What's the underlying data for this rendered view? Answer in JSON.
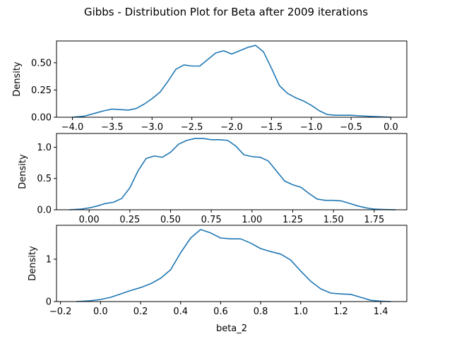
{
  "figure": {
    "title": "Gibbs - Distribution Plot for Beta after 2009 iterations",
    "line_color": "#1f77b4"
  },
  "chart_data": [
    {
      "type": "line",
      "title": "",
      "xlabel": "",
      "ylabel": "Density",
      "xlim": [
        -4.2,
        0.2
      ],
      "ylim": [
        0,
        0.7
      ],
      "xticks": [
        -4.0,
        -3.5,
        -3.0,
        -2.5,
        -2.0,
        -1.5,
        -1.0,
        -0.5,
        0.0
      ],
      "xtick_labels": [
        "−4.0",
        "−3.5",
        "−3.0",
        "−2.5",
        "−2.0",
        "−1.5",
        "−1.0",
        "−0.5",
        "0.0"
      ],
      "yticks": [
        0.0,
        0.25,
        0.5
      ],
      "ytick_labels": [
        "0.00",
        "0.25",
        "0.50"
      ],
      "grid": false,
      "series": [
        {
          "x": [
            -4.0,
            -3.85,
            -3.7,
            -3.6,
            -3.5,
            -3.4,
            -3.3,
            -3.2,
            -3.1,
            -3.0,
            -2.9,
            -2.8,
            -2.7,
            -2.6,
            -2.5,
            -2.4,
            -2.3,
            -2.2,
            -2.1,
            -2.0,
            -1.9,
            -1.8,
            -1.7,
            -1.6,
            -1.5,
            -1.4,
            -1.3,
            -1.2,
            -1.1,
            -1.0,
            -0.9,
            -0.8,
            -0.7,
            -0.6,
            -0.5,
            -0.4,
            -0.2,
            0.0
          ],
          "y": [
            0.0,
            0.01,
            0.04,
            0.06,
            0.075,
            0.07,
            0.065,
            0.08,
            0.12,
            0.17,
            0.23,
            0.33,
            0.44,
            0.48,
            0.47,
            0.47,
            0.53,
            0.59,
            0.61,
            0.58,
            0.61,
            0.64,
            0.66,
            0.6,
            0.45,
            0.29,
            0.22,
            0.18,
            0.15,
            0.11,
            0.06,
            0.025,
            0.018,
            0.018,
            0.018,
            0.013,
            0.006,
            0.0
          ]
        }
      ]
    },
    {
      "type": "line",
      "title": "",
      "xlabel": "",
      "ylabel": "Density",
      "xlim": [
        -0.2,
        1.95
      ],
      "ylim": [
        0,
        1.22
      ],
      "xticks": [
        0.0,
        0.25,
        0.5,
        0.75,
        1.0,
        1.25,
        1.5,
        1.75
      ],
      "xtick_labels": [
        "0.00",
        "0.25",
        "0.50",
        "0.75",
        "1.00",
        "1.25",
        "1.50",
        "1.75"
      ],
      "yticks": [
        0.0,
        0.5,
        1.0
      ],
      "ytick_labels": [
        "0.0",
        "0.5",
        "1.0"
      ],
      "grid": false,
      "series": [
        {
          "x": [
            -0.12,
            -0.05,
            0.0,
            0.05,
            0.1,
            0.15,
            0.2,
            0.25,
            0.3,
            0.35,
            0.4,
            0.45,
            0.5,
            0.55,
            0.6,
            0.65,
            0.7,
            0.75,
            0.8,
            0.85,
            0.9,
            0.95,
            1.0,
            1.05,
            1.1,
            1.15,
            1.2,
            1.25,
            1.3,
            1.35,
            1.4,
            1.45,
            1.5,
            1.55,
            1.6,
            1.65,
            1.7,
            1.75,
            1.8,
            1.88
          ],
          "y": [
            0.0,
            0.01,
            0.03,
            0.06,
            0.1,
            0.12,
            0.18,
            0.35,
            0.62,
            0.82,
            0.86,
            0.84,
            0.92,
            1.05,
            1.11,
            1.14,
            1.14,
            1.12,
            1.12,
            1.11,
            1.02,
            0.88,
            0.85,
            0.84,
            0.78,
            0.62,
            0.46,
            0.4,
            0.36,
            0.26,
            0.17,
            0.15,
            0.15,
            0.14,
            0.1,
            0.06,
            0.03,
            0.01,
            0.005,
            0.0
          ]
        }
      ]
    },
    {
      "type": "line",
      "title": "",
      "xlabel": "beta_2",
      "ylabel": "Density",
      "xlim": [
        -0.22,
        1.53
      ],
      "ylim": [
        0,
        1.8
      ],
      "xticks": [
        -0.2,
        0.0,
        0.2,
        0.4,
        0.6,
        0.8,
        1.0,
        1.2,
        1.4
      ],
      "xtick_labels": [
        "−0.2",
        "0.0",
        "0.2",
        "0.4",
        "0.6",
        "0.8",
        "1.0",
        "1.2",
        "1.4"
      ],
      "yticks": [
        0.0,
        1.0
      ],
      "ytick_labels": [
        "0",
        "1"
      ],
      "grid": false,
      "series": [
        {
          "x": [
            -0.12,
            -0.05,
            0.0,
            0.05,
            0.1,
            0.15,
            0.2,
            0.25,
            0.3,
            0.35,
            0.4,
            0.45,
            0.5,
            0.55,
            0.6,
            0.65,
            0.7,
            0.75,
            0.8,
            0.85,
            0.9,
            0.95,
            1.0,
            1.05,
            1.1,
            1.15,
            1.2,
            1.25,
            1.3,
            1.35,
            1.4,
            1.45
          ],
          "y": [
            0.0,
            0.02,
            0.05,
            0.1,
            0.18,
            0.26,
            0.33,
            0.42,
            0.55,
            0.75,
            1.15,
            1.5,
            1.7,
            1.62,
            1.5,
            1.48,
            1.48,
            1.38,
            1.25,
            1.18,
            1.12,
            0.98,
            0.72,
            0.48,
            0.3,
            0.2,
            0.18,
            0.17,
            0.1,
            0.03,
            0.01,
            0.0
          ]
        }
      ]
    }
  ]
}
